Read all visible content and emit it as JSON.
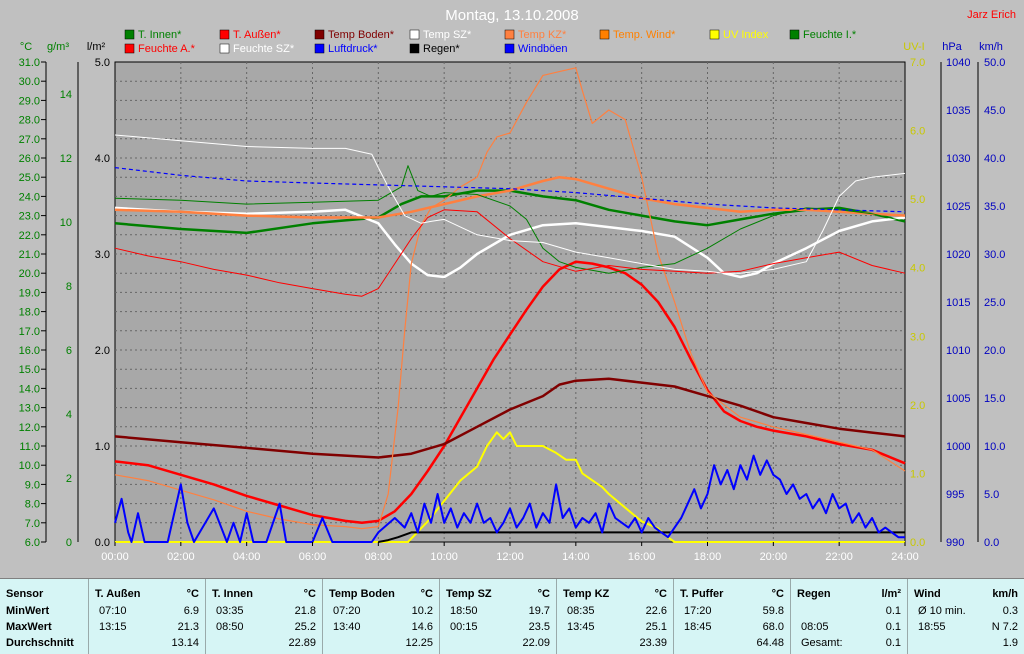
{
  "header": {
    "title": "Montag, 13.10.2008",
    "author": "Jarz Erich"
  },
  "axes": {
    "celsius": {
      "unit": "°C",
      "min": 6,
      "max": 31,
      "step": 1,
      "color": "#008000"
    },
    "humidity": {
      "unit": "g/m³",
      "min": 0,
      "max": 15,
      "ticks": [
        0,
        2,
        4,
        6,
        8,
        10,
        12,
        14
      ],
      "color": "#008000"
    },
    "rain": {
      "unit": "l/m²",
      "min": 0,
      "max": 5,
      "ticks": [
        "0.0",
        "1.0",
        "2.0",
        "3.0",
        "4.0",
        "5.0"
      ],
      "color": "#000000"
    },
    "uv": {
      "unit": "UV-I",
      "min": 0,
      "max": 7,
      "ticks": [
        "0.0",
        "1.0",
        "2.0",
        "3.0",
        "4.0",
        "5.0",
        "6.0",
        "7.0"
      ],
      "color": "#c8c800"
    },
    "pressure": {
      "unit": "hPa",
      "min": 990,
      "max": 1040,
      "step": 5,
      "color": "#0000c0"
    },
    "wind": {
      "unit": "km/h",
      "min": 0,
      "max": 50,
      "ticks": [
        "0.0",
        "5.0",
        "10.0",
        "15.0",
        "20.0",
        "25.0",
        "30.0",
        "35.0",
        "40.0",
        "45.0",
        "50.0"
      ],
      "color": "#0000c0"
    },
    "time": {
      "ticks": [
        "00:00",
        "02:00",
        "04:00",
        "06:00",
        "08:00",
        "10:00",
        "12:00",
        "14:00",
        "16:00",
        "18:00",
        "20:00",
        "22:00",
        "24:00"
      ]
    }
  },
  "legend": [
    {
      "label": "T. Innen*",
      "color": "#008000"
    },
    {
      "label": "T. Außen*",
      "color": "#ff0000"
    },
    {
      "label": "Temp Boden*",
      "color": "#800000"
    },
    {
      "label": "Temp SZ*",
      "color": "#ffffff"
    },
    {
      "label": "Temp KZ*",
      "color": "#ff8040"
    },
    {
      "label": "Temp. Wind*",
      "color": "#ff8000"
    },
    {
      "label": "UV Index",
      "color": "#ffff00"
    },
    {
      "label": "Feuchte I.*",
      "color": "#008000"
    },
    {
      "label": "Feuchte A.*",
      "color": "#ff0000"
    },
    {
      "label": "Feuchte SZ*",
      "color": "#ffffff"
    },
    {
      "label": "Luftdruck*",
      "color": "#0000ff"
    },
    {
      "label": "Regen*",
      "color": "#000000"
    },
    {
      "label": "Windböen",
      "color": "#0000ff"
    }
  ],
  "chart_data": {
    "type": "line",
    "title": "Montag, 13.10.2008",
    "xlim": [
      0,
      24
    ],
    "series": [
      {
        "name": "T. Innen*",
        "axis": "celsius",
        "color": "#008000",
        "width": 2.5,
        "x": [
          0,
          2,
          4,
          6,
          8,
          8.7,
          9.3,
          10,
          11,
          12,
          13,
          14,
          15,
          16,
          17,
          18,
          19,
          20,
          21,
          22,
          23,
          24
        ],
        "y": [
          22.6,
          22.3,
          22.1,
          22.6,
          22.9,
          23.6,
          24.0,
          24.0,
          24.3,
          24.3,
          24.0,
          23.8,
          23.3,
          23.0,
          22.7,
          22.5,
          22.8,
          23.1,
          23.3,
          23.4,
          23.1,
          22.7
        ]
      },
      {
        "name": "T. Außen*",
        "axis": "celsius",
        "color": "#ff0000",
        "width": 2.5,
        "x": [
          0,
          1,
          2,
          3,
          4,
          5,
          6,
          7,
          7.5,
          8,
          8.5,
          9,
          9.5,
          10,
          10.5,
          11,
          11.5,
          12,
          12.5,
          13,
          13.5,
          14,
          14.5,
          15,
          15.5,
          16,
          16.5,
          17,
          17.5,
          18,
          18.5,
          19,
          19.5,
          20,
          21,
          22,
          23,
          24
        ],
        "y": [
          10.2,
          10.0,
          9.5,
          9.0,
          8.4,
          7.9,
          7.4,
          7.1,
          7.0,
          7.1,
          7.6,
          8.5,
          9.7,
          11.0,
          12.5,
          14.0,
          15.5,
          16.8,
          18.1,
          19.3,
          20.2,
          20.6,
          20.5,
          20.3,
          20.0,
          19.4,
          18.5,
          17.2,
          15.5,
          13.9,
          12.8,
          12.3,
          12.0,
          11.8,
          11.5,
          11.1,
          10.8,
          10.1
        ]
      },
      {
        "name": "Temp Boden*",
        "axis": "celsius",
        "color": "#800000",
        "width": 2.5,
        "x": [
          0,
          2,
          4,
          6,
          8,
          9,
          10,
          11,
          12,
          13,
          13.5,
          14,
          15,
          16,
          17,
          18,
          19,
          20,
          21,
          22,
          23,
          24
        ],
        "y": [
          11.5,
          11.2,
          10.9,
          10.6,
          10.4,
          10.6,
          11.1,
          12.0,
          12.9,
          13.6,
          14.2,
          14.4,
          14.5,
          14.3,
          14.1,
          13.6,
          13.1,
          12.5,
          12.2,
          11.9,
          11.7,
          11.5
        ]
      },
      {
        "name": "Temp SZ*",
        "axis": "celsius",
        "color": "#ffffff",
        "width": 2.5,
        "x": [
          0,
          2,
          4,
          6,
          7,
          8,
          8.5,
          9,
          9.5,
          10,
          10.5,
          11,
          12,
          13,
          14,
          15,
          16,
          17,
          18,
          18.5,
          19,
          19.5,
          20,
          21,
          22,
          23,
          24
        ],
        "y": [
          23.4,
          23.2,
          23.1,
          23.2,
          23.3,
          22.6,
          21.5,
          20.5,
          19.9,
          19.8,
          20.3,
          21.0,
          22.0,
          22.5,
          22.6,
          22.4,
          22.2,
          21.9,
          20.8,
          20.0,
          19.8,
          20.0,
          20.5,
          21.3,
          22.2,
          22.7,
          22.9
        ]
      },
      {
        "name": "Temp KZ*",
        "axis": "celsius",
        "color": "#ff8040",
        "width": 1.2,
        "x": [
          0,
          1,
          2,
          3,
          4,
          5,
          6,
          7,
          7.5,
          8,
          8.3,
          8.6,
          8.8,
          9,
          9.3,
          9.6,
          10,
          10.5,
          11,
          11.3,
          11.6,
          12,
          12.5,
          13,
          13.5,
          14,
          14.2,
          14.5,
          15,
          15.5,
          16,
          16.5,
          17,
          17.5,
          18,
          19,
          20,
          21,
          22,
          23,
          24
        ],
        "y": [
          9.5,
          9.2,
          8.7,
          8.2,
          7.6,
          7.2,
          6.9,
          6.8,
          6.7,
          6.8,
          8.5,
          13.0,
          17.0,
          20.5,
          22.5,
          23.4,
          23.8,
          24.5,
          25.0,
          26.3,
          27.1,
          27.3,
          28.9,
          30.3,
          30.5,
          30.7,
          29.5,
          27.8,
          28.5,
          28.0,
          25.0,
          21.0,
          18.5,
          15.8,
          13.8,
          12.5,
          12.0,
          11.6,
          11.2,
          10.8,
          9.7
        ]
      },
      {
        "name": "Temp. Wind*",
        "axis": "celsius",
        "color": "#ff8040",
        "width": 2.5,
        "x": [
          0,
          2,
          4,
          6,
          8,
          9,
          10,
          11,
          12,
          13,
          13.5,
          14,
          15,
          16,
          17,
          18,
          19,
          20,
          21,
          22,
          23,
          24
        ],
        "y": [
          23.3,
          23.2,
          23.0,
          22.9,
          22.9,
          23.2,
          23.6,
          24.0,
          24.3,
          24.8,
          25.0,
          24.9,
          24.4,
          23.9,
          23.6,
          23.4,
          23.2,
          23.3,
          23.3,
          23.2,
          23.1,
          23.0
        ]
      },
      {
        "name": "Feuchte I.*",
        "axis": "celsius",
        "color": "#008000",
        "width": 1,
        "x": [
          0,
          2,
          4,
          6,
          8,
          8.7,
          8.9,
          9.2,
          9.6,
          10,
          11,
          12,
          12.5,
          13,
          13.5,
          14,
          15,
          16,
          17,
          18,
          19,
          20,
          21,
          22,
          23,
          24
        ],
        "y": [
          23.9,
          23.8,
          23.6,
          23.7,
          23.8,
          24.5,
          25.6,
          24.3,
          24.0,
          24.2,
          24.1,
          23.5,
          22.8,
          21.3,
          20.6,
          20.3,
          20.0,
          20.3,
          20.5,
          21.3,
          22.3,
          23.0,
          23.4,
          23.3,
          23.1,
          22.7
        ]
      },
      {
        "name": "Feuchte A.*",
        "axis": "celsius",
        "color": "#ff0000",
        "width": 1,
        "x": [
          0,
          1,
          2,
          3,
          4,
          5,
          6,
          7,
          7.5,
          8,
          8.5,
          9,
          9.5,
          10,
          11,
          12,
          13,
          14,
          15,
          16,
          17,
          18,
          19,
          20,
          21,
          22,
          23,
          24
        ],
        "y": [
          21.3,
          20.9,
          20.6,
          20.2,
          19.9,
          19.5,
          19.2,
          18.9,
          18.8,
          19.2,
          20.5,
          21.8,
          22.9,
          23.3,
          23.2,
          21.8,
          20.6,
          20.1,
          20.4,
          20.2,
          20.1,
          20.0,
          20.1,
          20.5,
          20.8,
          21.1,
          20.4,
          20.0
        ]
      },
      {
        "name": "Feuchte SZ*",
        "axis": "celsius",
        "color": "#ffffff",
        "width": 1,
        "x": [
          0,
          2,
          4,
          6,
          7,
          7.8,
          8,
          8.3,
          8.8,
          9.3,
          9.6,
          10,
          11,
          12,
          13,
          14,
          15,
          16,
          17,
          18,
          18.5,
          19,
          20,
          21,
          21.5,
          22,
          22.5,
          23,
          24
        ],
        "y": [
          27.2,
          26.9,
          26.6,
          26.5,
          26.5,
          26.2,
          25.5,
          24.5,
          23.0,
          22.6,
          22.7,
          22.8,
          22.0,
          21.7,
          21.6,
          21.1,
          20.8,
          20.5,
          20.2,
          20.1,
          20.0,
          20.0,
          20.2,
          20.6,
          22.2,
          24.0,
          24.8,
          25.0,
          25.2
        ]
      },
      {
        "name": "Luftdruck*",
        "axis": "pressure",
        "color": "#0000ff",
        "width": 1.2,
        "dash": "4,3",
        "x": [
          0,
          2,
          4,
          6,
          8,
          10,
          12,
          14,
          16,
          18,
          20,
          22,
          24
        ],
        "y": [
          1029.0,
          1028.2,
          1027.6,
          1027.4,
          1027.2,
          1027.0,
          1026.8,
          1026.4,
          1025.8,
          1025.2,
          1024.8,
          1024.6,
          1024.4
        ]
      },
      {
        "name": "UV Index",
        "axis": "uv",
        "color": "#ffff00",
        "width": 2,
        "x": [
          0,
          8.9,
          9.5,
          10,
          10.5,
          11,
          11.3,
          11.6,
          11.8,
          12,
          12.2,
          12.5,
          13,
          13.4,
          13.7,
          14,
          14.2,
          14.5,
          14.8,
          15,
          15.5,
          16,
          16.5,
          16.7,
          17,
          24
        ],
        "y": [
          0,
          0,
          0.3,
          0.6,
          0.9,
          1.1,
          1.4,
          1.6,
          1.5,
          1.6,
          1.4,
          1.4,
          1.4,
          1.3,
          1.2,
          1.2,
          1.0,
          0.9,
          0.8,
          0.7,
          0.5,
          0.3,
          0.2,
          0.1,
          0,
          0
        ]
      },
      {
        "name": "Regen*",
        "axis": "rain",
        "color": "#000000",
        "width": 2,
        "x": [
          8.0,
          8.3,
          8.6,
          9.0,
          10,
          12,
          14,
          16,
          18,
          20,
          22,
          24
        ],
        "y": [
          0.0,
          0.02,
          0.05,
          0.1,
          0.1,
          0.1,
          0.1,
          0.1,
          0.1,
          0.1,
          0.1,
          0.1
        ]
      },
      {
        "name": "Windböen",
        "axis": "wind",
        "color": "#0000ff",
        "width": 2,
        "x": [
          0,
          0.2,
          0.4,
          0.5,
          0.7,
          0.9,
          1.2,
          1.6,
          2,
          2.2,
          2.4,
          3,
          3.4,
          3.6,
          3.8,
          4,
          4.2,
          4.6,
          5.0,
          5.2,
          5.6,
          6,
          6.3,
          6.6,
          7,
          7.4,
          7.8,
          8.0,
          8.5,
          8.8,
          9.0,
          9.2,
          9.4,
          9.6,
          9.8,
          10.0,
          10.2,
          10.4,
          10.6,
          10.8,
          11.0,
          11.2,
          11.4,
          11.6,
          11.8,
          12.0,
          12.2,
          12.4,
          12.6,
          12.8,
          13.0,
          13.2,
          13.4,
          13.6,
          13.8,
          14.0,
          14.2,
          14.4,
          14.6,
          14.8,
          15.0,
          15.2,
          15.4,
          15.6,
          15.8,
          16.0,
          16.2,
          16.4,
          16.6,
          16.8,
          17.0,
          17.2,
          17.4,
          17.6,
          17.8,
          18.0,
          18.2,
          18.4,
          18.6,
          18.8,
          19.0,
          19.2,
          19.4,
          19.6,
          19.8,
          20.0,
          20.2,
          20.4,
          20.6,
          20.8,
          21.0,
          21.2,
          21.4,
          21.6,
          21.8,
          22.0,
          22.2,
          22.4,
          22.6,
          22.8,
          23.0,
          23.2,
          23.4,
          23.6,
          23.8,
          24.0
        ],
        "y": [
          2.0,
          4.5,
          1.0,
          0,
          3.0,
          0,
          0,
          0,
          6.0,
          2.0,
          0,
          3.5,
          0,
          2.0,
          0,
          3.0,
          0,
          0,
          4.0,
          0,
          0,
          0,
          2.5,
          0,
          0,
          0,
          0,
          1.0,
          2.5,
          1.5,
          3.0,
          1.0,
          4.0,
          2.0,
          5.0,
          2.0,
          3.5,
          1.5,
          3.0,
          2.0,
          4.0,
          2.0,
          2.5,
          1.0,
          2.0,
          3.5,
          1.5,
          2.5,
          4.0,
          1.5,
          3.0,
          2.0,
          6.0,
          2.5,
          3.5,
          1.5,
          2.5,
          2.0,
          3.0,
          1.0,
          4.0,
          2.5,
          2.0,
          1.5,
          2.5,
          1.0,
          2.5,
          1.5,
          1.0,
          0.5,
          1.5,
          2.5,
          4.0,
          5.5,
          3.5,
          5.0,
          8.0,
          6.0,
          7.5,
          5.5,
          8.0,
          6.5,
          9.0,
          7.0,
          8.5,
          7.0,
          6.5,
          5.0,
          6.0,
          4.5,
          5.0,
          3.5,
          4.5,
          3.0,
          5.0,
          3.5,
          4.0,
          2.0,
          3.0,
          1.5,
          2.5,
          1.0,
          1.5,
          1.0,
          0.5,
          0.5
        ]
      }
    ]
  },
  "stats": {
    "labels": {
      "title": "Sensor",
      "min": "MinWert",
      "max": "MaxWert",
      "avg": "Durchschnitt"
    },
    "columns": [
      {
        "name": "T. Außen",
        "unit": "°C",
        "min_time": "07:10",
        "min": "6.9",
        "max_time": "13:15",
        "max": "21.3",
        "avg": "13.14"
      },
      {
        "name": "T. Innen",
        "unit": "°C",
        "min_time": "03:35",
        "min": "21.8",
        "max_time": "08:50",
        "max": "25.2",
        "avg": "22.89"
      },
      {
        "name": "Temp Boden",
        "unit": "°C",
        "min_time": "07:20",
        "min": "10.2",
        "max_time": "13:40",
        "max": "14.6",
        "avg": "12.25"
      },
      {
        "name": "Temp SZ",
        "unit": "°C",
        "min_time": "18:50",
        "min": "19.7",
        "max_time": "00:15",
        "max": "23.5",
        "avg": "22.09"
      },
      {
        "name": "Temp KZ",
        "unit": "°C",
        "min_time": "08:35",
        "min": "22.6",
        "max_time": "13:45",
        "max": "25.1",
        "avg": "23.39"
      },
      {
        "name": "T. Puffer",
        "unit": "°C",
        "min_time": "17:20",
        "min": "59.8",
        "max_time": "18:45",
        "max": "68.0",
        "avg": "64.48"
      },
      {
        "name": "Regen",
        "unit": "l/m²",
        "min_time": "",
        "min": "0.1",
        "max_time": "08:05",
        "max": "0.1",
        "avg_label": "Gesamt:",
        "avg": "0.1"
      },
      {
        "name": "Wind",
        "unit": "km/h",
        "min_time": "Ø 10 min.",
        "min": "0.3",
        "max_time": "18:55",
        "max": "N 7.2",
        "avg": "1.9"
      }
    ]
  }
}
